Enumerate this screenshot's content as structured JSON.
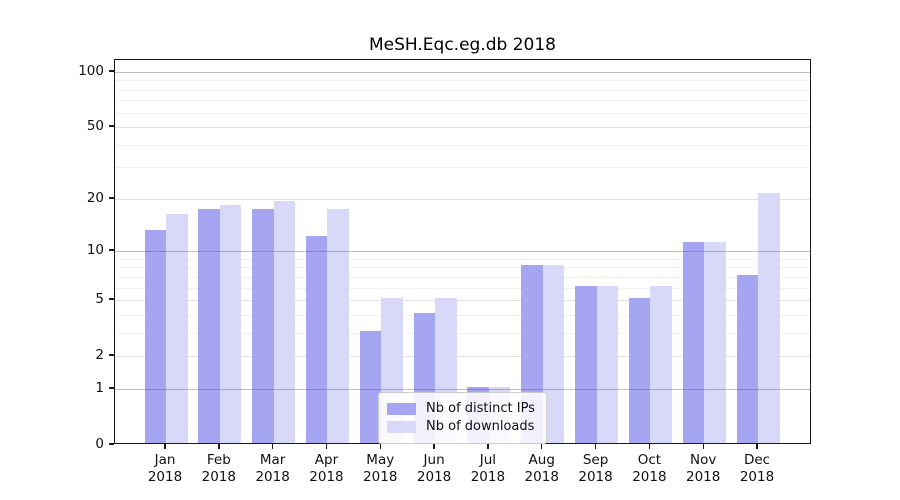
{
  "chart_data": {
    "type": "bar",
    "title": "MeSH.Eqc.eg.db 2018",
    "categories": [
      "Jan",
      "Feb",
      "Mar",
      "Apr",
      "May",
      "Jun",
      "Jul",
      "Aug",
      "Sep",
      "Oct",
      "Nov",
      "Dec"
    ],
    "x_year_label": "2018",
    "series": [
      {
        "name": "Nb of distinct IPs",
        "color": "#a5a5f2",
        "values": [
          13,
          17,
          17,
          12,
          3,
          4,
          1,
          8,
          6,
          5,
          11,
          7
        ]
      },
      {
        "name": "Nb of downloads",
        "color": "#d8d8f8",
        "values": [
          16,
          18,
          19,
          17,
          5,
          5,
          1,
          8,
          6,
          6,
          11,
          21
        ]
      }
    ],
    "yscale": "log1p",
    "ylim": [
      0,
      116
    ],
    "y_ticks": [
      100,
      50,
      20,
      10,
      5,
      2,
      1,
      0
    ],
    "y_minor_gridlines": [
      3,
      4,
      6,
      7,
      8,
      9,
      30,
      40,
      60,
      70,
      80,
      90
    ],
    "grid": "on",
    "legend_position": "lower center"
  }
}
